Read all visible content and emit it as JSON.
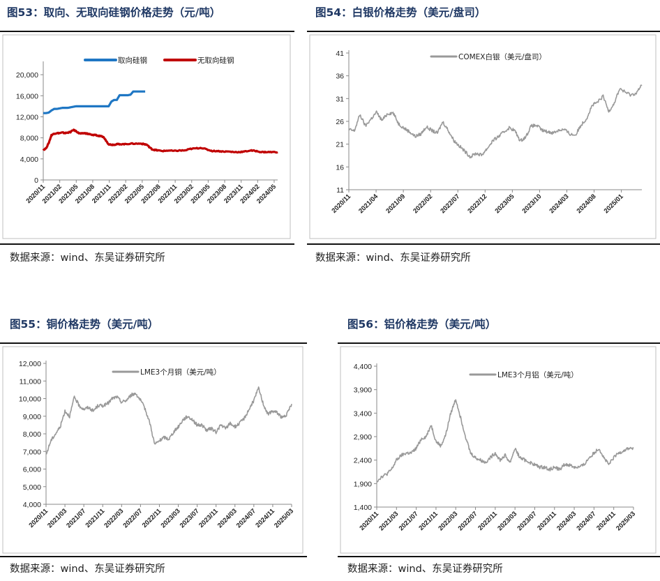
{
  "charts": [
    {
      "id": "c53",
      "title": "图53：取向、无取向硅钢价格走势（元/吨）",
      "source": "数据来源：wind、东吴证券研究所",
      "chart_data": {
        "type": "line",
        "ylim": [
          0,
          22000
        ],
        "yticks": [
          "0",
          "4,000",
          "8,000",
          "12,000",
          "16,000",
          "20,000"
        ],
        "xticks": [
          "2020/11",
          "2021/02",
          "2021/05",
          "2021/08",
          "2021/11",
          "2022/02",
          "2022/05",
          "2022/08",
          "2022/11",
          "2023/02",
          "2023/05",
          "2023/08",
          "2023/11",
          "2024/02",
          "2024/05"
        ],
        "grid": false,
        "legend": "top",
        "series": [
          {
            "name": "取向硅钢",
            "color": "#1f77c4",
            "x_start": 0,
            "x_end": 18.7,
            "x": [
              0,
              0.5,
              1,
              1.5,
              2,
              2.5,
              3,
              3.5,
              4,
              4.5,
              5,
              5.5,
              6,
              6.5,
              7,
              7.5,
              8,
              8.5,
              9,
              9.5,
              10,
              10.5,
              11,
              11.5,
              12,
              12.5,
              13,
              13.5,
              14,
              14.5,
              15,
              15.5,
              16,
              16.5,
              17,
              17.5,
              18,
              18.5,
              18.7
            ],
            "values": [
              12700,
              12700,
              12800,
              13200,
              13500,
              13500,
              13600,
              13700,
              13700,
              13700,
              13800,
              13900,
              14000,
              14000,
              14000,
              14000,
              14000,
              14000,
              14000,
              14000,
              14000,
              14000,
              14000,
              14000,
              14000,
              14900,
              15200,
              15200,
              16100,
              16100,
              16100,
              16100,
              16200,
              16800,
              16800,
              16800,
              16800,
              16800,
              16800
            ]
          },
          {
            "name": "无取向硅钢",
            "color": "#c00000",
            "x_start": 0,
            "x_end": 43,
            "x": [
              0,
              0.5,
              1,
              1.5,
              2,
              2.5,
              3,
              3.5,
              4,
              4.5,
              5,
              5.5,
              6,
              6.5,
              7,
              7.5,
              8,
              8.5,
              9,
              9.5,
              10,
              10.5,
              11,
              11.5,
              12,
              12.5,
              13,
              13.5,
              14,
              15,
              16,
              17,
              18,
              18.5,
              19,
              19.5,
              20,
              20.5,
              21,
              22,
              23,
              24,
              25,
              26,
              27,
              28,
              29,
              30,
              31,
              32,
              33,
              34,
              35,
              36,
              37,
              38,
              39,
              40,
              41,
              42,
              43
            ],
            "values": [
              5700,
              6000,
              7000,
              8500,
              8800,
              8900,
              8900,
              9000,
              8900,
              9000,
              9100,
              9500,
              9300,
              8900,
              8800,
              8900,
              8800,
              8700,
              8500,
              8600,
              8400,
              8300,
              8200,
              7500,
              6800,
              6700,
              6700,
              6800,
              6800,
              6800,
              6900,
              6900,
              6900,
              6800,
              6700,
              6200,
              5800,
              5700,
              5600,
              5500,
              5600,
              5500,
              5600,
              5600,
              5900,
              6000,
              6100,
              5800,
              5500,
              5500,
              5400,
              5400,
              5300,
              5300,
              5400,
              5600,
              5500,
              5300,
              5300,
              5300,
              5300
            ]
          }
        ]
      }
    },
    {
      "id": "c54",
      "title": "图54：白银价格走势（美元/盘司）",
      "source": "数据来源：wind、东吴证券研究所",
      "chart_data": {
        "type": "line",
        "ylim": [
          11,
          41
        ],
        "yticks": [
          "11",
          "16",
          "21",
          "26",
          "31",
          "36",
          "41"
        ],
        "xticks": [
          "2020/11",
          "2021/04",
          "2021/09",
          "2022/02",
          "2022/07",
          "2022/12",
          "2023/05",
          "2023/10",
          "2024/03",
          "2024/08",
          "2025/01"
        ],
        "grid": false,
        "legend": "top",
        "series": [
          {
            "name": "COMEX白银（美元/盘司）",
            "color": "#999999",
            "x": [
              0,
              1,
              2,
              3,
              4,
              5,
              6,
              7,
              8,
              9,
              10,
              11,
              12,
              13,
              14,
              15,
              16,
              17,
              18,
              19,
              20,
              21,
              22,
              23,
              24,
              25,
              26,
              27,
              28,
              29,
              30,
              31,
              32,
              33,
              34,
              35,
              36,
              37,
              38,
              39,
              40,
              41,
              42,
              43,
              44,
              45,
              46,
              47,
              48,
              49,
              50,
              51,
              52,
              53
            ],
            "values": [
              24.2,
              23.9,
              27.5,
              25.0,
              26.5,
              28.0,
              26.2,
              27.7,
              27.9,
              25.5,
              24.5,
              23.7,
              22.7,
              23.2,
              24.8,
              24.0,
              23.4,
              25.9,
              24.0,
              21.8,
              20.6,
              19.4,
              18.2,
              19.0,
              18.6,
              20.0,
              21.7,
              22.6,
              23.6,
              24.6,
              24.0,
              21.7,
              22.6,
              25.0,
              25.1,
              24.0,
              23.7,
              23.5,
              24.1,
              24.2,
              23.2,
              23.0,
              25.2,
              26.6,
              29.5,
              30.2,
              31.5,
              28.2,
              30.0,
              33.2,
              32.4,
              31.8,
              32.2,
              34.0
            ]
          }
        ]
      }
    },
    {
      "id": "c55",
      "title": "图55：铜价格走势（美元/吨）",
      "source": "数据来源：wind、东吴证券研究所",
      "chart_data": {
        "type": "line",
        "ylim": [
          4000,
          12000
        ],
        "yticks": [
          "4,000",
          "5,000",
          "6,000",
          "7,000",
          "8,000",
          "9,000",
          "10,000",
          "11,000",
          "12,000"
        ],
        "xticks": [
          "2020/11",
          "2021/03",
          "2021/07",
          "2021/11",
          "2022/03",
          "2022/07",
          "2022/11",
          "2023/03",
          "2023/07",
          "2023/11",
          "2024/03",
          "2024/07",
          "2024/11",
          "2025/03"
        ],
        "grid": false,
        "legend": "top",
        "series": [
          {
            "name": "LME3个月铜（美元/吨）",
            "color": "#999999",
            "x": [
              0,
              1,
              2,
              3,
              4,
              5,
              6,
              7,
              8,
              9,
              10,
              11,
              12,
              13,
              14,
              15,
              16,
              17,
              18,
              19,
              20,
              21,
              22,
              23,
              24,
              25,
              26,
              27,
              28,
              29,
              30,
              31,
              32,
              33,
              34,
              35,
              36,
              37,
              38,
              39,
              40,
              41,
              42,
              43,
              44,
              45,
              46,
              47,
              48,
              49,
              50,
              51,
              52
            ],
            "values": [
              6800,
              7600,
              8000,
              8400,
              9300,
              9000,
              10100,
              9600,
              9400,
              9500,
              9300,
              9600,
              9600,
              9700,
              10000,
              10100,
              9800,
              9900,
              10200,
              10300,
              9900,
              9400,
              8600,
              7400,
              7600,
              7800,
              7700,
              8100,
              8400,
              8800,
              9000,
              8800,
              8500,
              8500,
              8200,
              8300,
              8100,
              8500,
              8300,
              8600,
              8400,
              8600,
              8900,
              9400,
              9900,
              10600,
              9700,
              9100,
              9300,
              9200,
              8900,
              9100,
              9700
            ]
          }
        ]
      }
    },
    {
      "id": "c56",
      "title": "图56：铝价格走势（美元/吨）",
      "source": "数据来源：wind、东吴证券研究所",
      "chart_data": {
        "type": "line",
        "ylim": [
          1400,
          4400
        ],
        "yticks": [
          "1,400",
          "1,900",
          "2,400",
          "2,900",
          "3,400",
          "3,900",
          "4,400"
        ],
        "xticks": [
          "2020/11",
          "2021/03",
          "2021/07",
          "2021/11",
          "2022/03",
          "2022/07",
          "2022/11",
          "2023/03",
          "2023/07",
          "2023/11",
          "2024/03",
          "2024/07",
          "2024/11",
          "2025/03"
        ],
        "grid": false,
        "legend": "top",
        "series": [
          {
            "name": "LME3个月铝（美元/吨）",
            "color": "#999999",
            "x": [
              0,
              1,
              2,
              3,
              4,
              5,
              6,
              7,
              8,
              9,
              10,
              11,
              12,
              13,
              14,
              15,
              16,
              17,
              18,
              19,
              20,
              21,
              22,
              23,
              24,
              25,
              26,
              27,
              28,
              29,
              30,
              31,
              32,
              33,
              34,
              35,
              36,
              37,
              38,
              39,
              40,
              41,
              42,
              43,
              44,
              45,
              46,
              47,
              48,
              49,
              50,
              51,
              52
            ],
            "values": [
              1950,
              2050,
              2100,
              2200,
              2400,
              2500,
              2550,
              2550,
              2650,
              2850,
              2900,
              3150,
              2800,
              2700,
              2950,
              3400,
              3700,
              3300,
              2900,
              2550,
              2450,
              2400,
              2350,
              2450,
              2550,
              2400,
              2500,
              2350,
              2650,
              2450,
              2400,
              2350,
              2300,
              2250,
              2250,
              2200,
              2250,
              2200,
              2300,
              2300,
              2250,
              2250,
              2300,
              2450,
              2550,
              2650,
              2450,
              2300,
              2450,
              2550,
              2600,
              2650,
              2650
            ]
          }
        ]
      }
    }
  ]
}
